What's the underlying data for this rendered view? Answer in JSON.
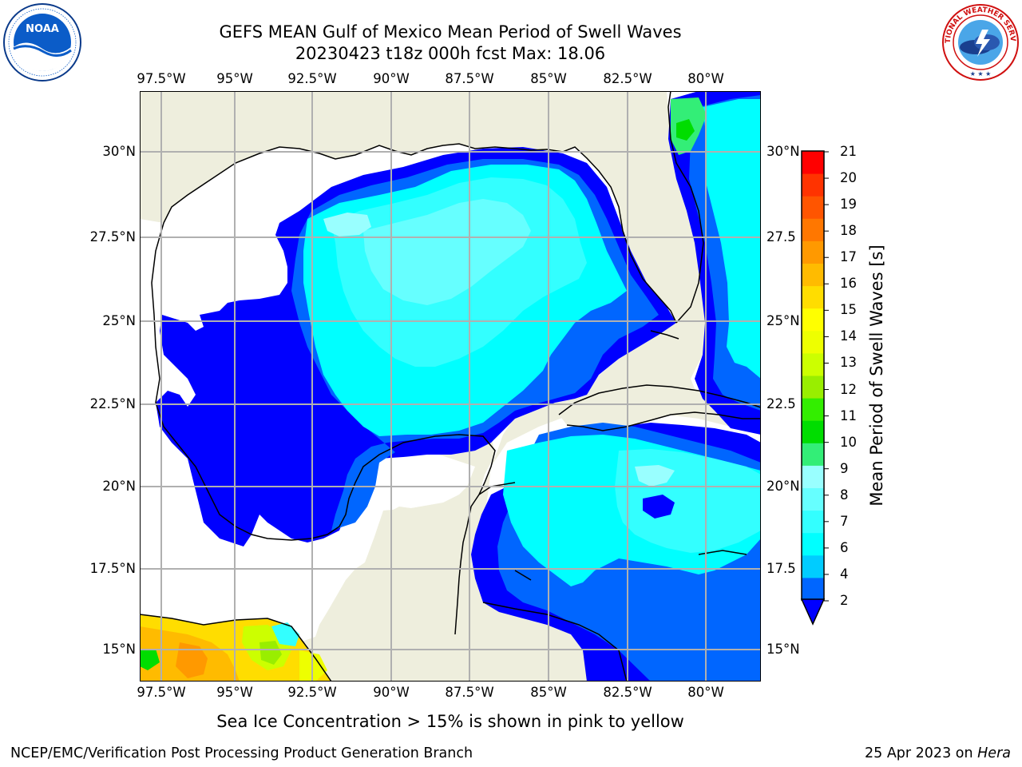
{
  "header": {
    "title_line1": "GEFS MEAN Gulf of Mexico Mean Period of Swell Waves",
    "title_line2": "20230423 t18z 000h fcst   Max: 18.06"
  },
  "logos": {
    "left": {
      "icon": "noaa-logo",
      "text": "NOAA",
      "ring_text": "NATIONAL OCEANIC AND ATMOSPHERIC ADMINISTRATION · U.S. DEPARTMENT OF COMMERCE"
    },
    "right": {
      "icon": "nws-logo",
      "ring_text": "NATIONAL WEATHER SERVICE"
    }
  },
  "map": {
    "longitude_ticks": [
      "97.5°W",
      "95°W",
      "92.5°W",
      "90°W",
      "87.5°W",
      "85°W",
      "82.5°W",
      "80°W"
    ],
    "latitude_ticks_left": [
      "30°N",
      "27.5°N",
      "25°N",
      "22.5°N",
      "20°N",
      "17.5°N",
      "15°N"
    ],
    "latitude_ticks_right": [
      "30°N",
      "27.5",
      "25°N",
      "22.5",
      "20°N",
      "17.5",
      "15°N"
    ],
    "lon_range": [
      -98.2,
      -78.4
    ],
    "lat_range": [
      14.0,
      31.8
    ],
    "land_color": "#eeeedd",
    "ocean_no_data_color": "#ffffff",
    "grid_color": "#b0b0b0",
    "coastline_color": "#000000"
  },
  "colorbar": {
    "title": "Mean Period of Swell Waves [s]",
    "labels": [
      "21",
      "20",
      "19",
      "18",
      "17",
      "16",
      "15",
      "14",
      "13",
      "12",
      "11",
      "10",
      "9",
      "8",
      "7",
      "6",
      "4",
      "2"
    ],
    "colors_bottom_to_top": [
      "#0066ff",
      "#00ccff",
      "#00ffff",
      "#33ffff",
      "#66ffff",
      "#99ffff",
      "#33ee77",
      "#00dd00",
      "#33ee00",
      "#99ee00",
      "#ccff00",
      "#eeff00",
      "#ffff00",
      "#ffdd00",
      "#ffbb00",
      "#ff9900",
      "#ff7700",
      "#ff5500",
      "#ff3300",
      "#ff0000"
    ],
    "extend_color": "#0000ff"
  },
  "subtitle": "Sea Ice Concentration > 15% is shown in pink to yellow",
  "footer": {
    "left": "NCEP/EMC/Verification Post Processing Product Generation Branch",
    "date": "25 Apr 2023 on ",
    "machine": "Hera"
  }
}
